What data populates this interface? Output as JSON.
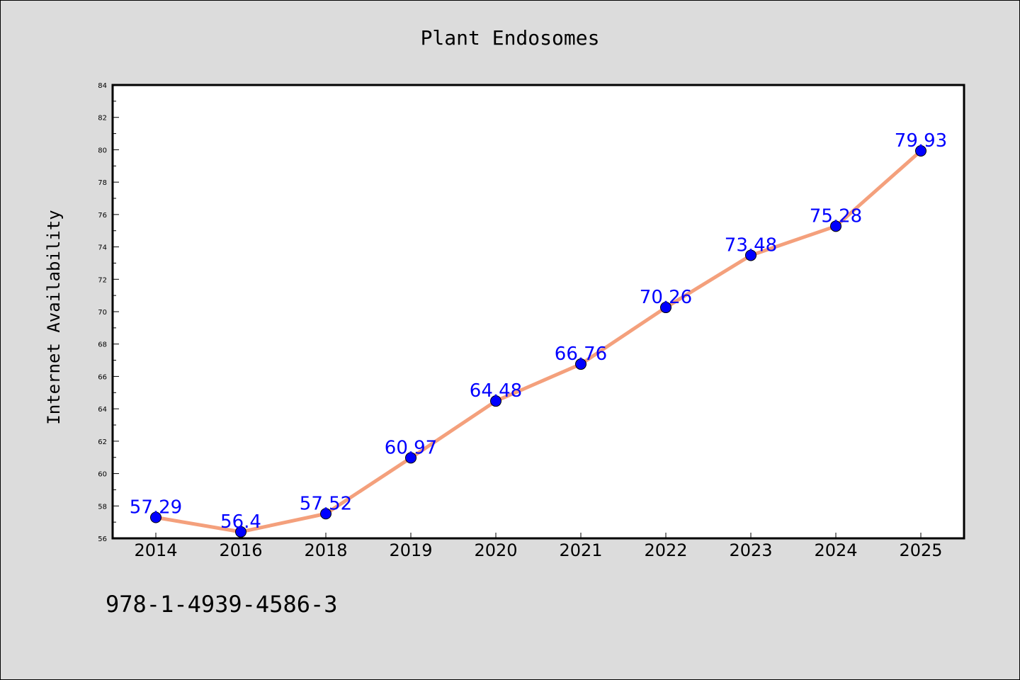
{
  "chart_data": {
    "type": "line",
    "title": "Plant Endosomes",
    "xlabel": "",
    "ylabel": "Internet Availability",
    "categories": [
      "2014",
      "2016",
      "2018",
      "2019",
      "2020",
      "2021",
      "2022",
      "2023",
      "2024",
      "2025"
    ],
    "values": [
      57.29,
      56.4,
      57.52,
      60.97,
      64.48,
      66.76,
      70.26,
      73.48,
      75.28,
      79.93
    ],
    "data_labels": [
      "57.29",
      "56.4",
      "57.52",
      "60.97",
      "64.48",
      "66.76",
      "70.26",
      "73.48",
      "75.28",
      "79.93"
    ],
    "ylim": [
      56,
      84
    ],
    "yticks": [
      56,
      58,
      60,
      62,
      64,
      66,
      68,
      70,
      72,
      74,
      76,
      78,
      80,
      82,
      84
    ],
    "grid": false,
    "line_color": "#f4a07c",
    "marker_color": "#0000ff",
    "label_color": "#0000ff",
    "plot_background": "#ffffff",
    "figure_background": "#dcdcdc"
  },
  "footer": {
    "isbn": "978-1-4939-4586-3"
  }
}
